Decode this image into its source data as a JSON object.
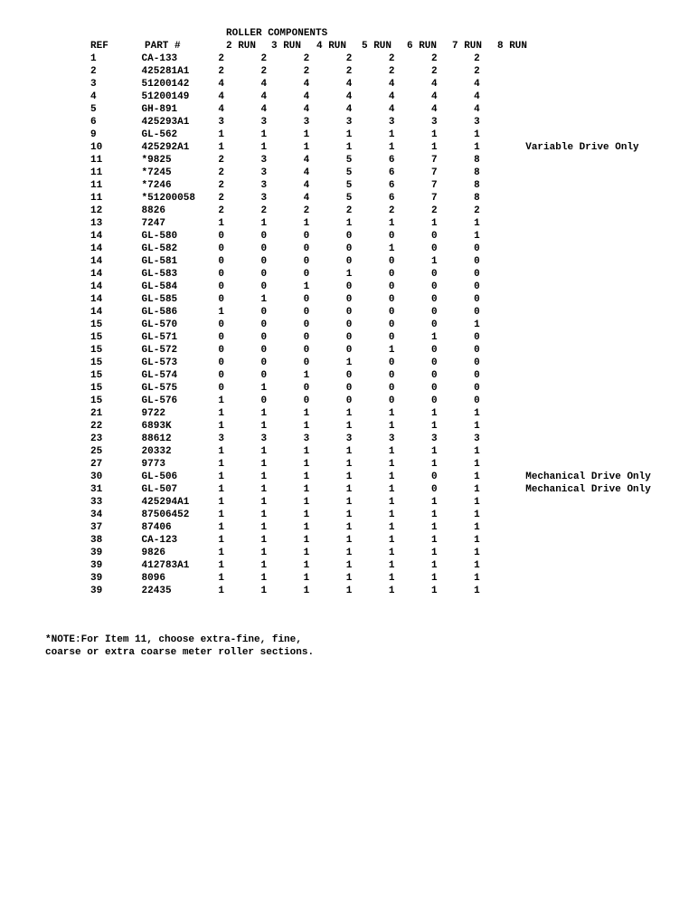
{
  "title": "ROLLER COMPONENTS",
  "columns": [
    "REF",
    "PART #",
    "2 RUN",
    "3 RUN",
    "4 RUN",
    "5 RUN",
    "6 RUN",
    "7 RUN",
    "8 RUN"
  ],
  "rows": [
    {
      "ref": "1",
      "part": "CA-133",
      "runs": [
        "2",
        "2",
        "2",
        "2",
        "2",
        "2",
        "2"
      ],
      "note": ""
    },
    {
      "ref": "2",
      "part": "425281A1",
      "runs": [
        "2",
        "2",
        "2",
        "2",
        "2",
        "2",
        "2"
      ],
      "note": ""
    },
    {
      "ref": "3",
      "part": "51200142",
      "runs": [
        "4",
        "4",
        "4",
        "4",
        "4",
        "4",
        "4"
      ],
      "note": ""
    },
    {
      "ref": "4",
      "part": "51200149",
      "runs": [
        "4",
        "4",
        "4",
        "4",
        "4",
        "4",
        "4"
      ],
      "note": ""
    },
    {
      "ref": "5",
      "part": "GH-891",
      "runs": [
        "4",
        "4",
        "4",
        "4",
        "4",
        "4",
        "4"
      ],
      "note": ""
    },
    {
      "ref": "6",
      "part": "425293A1",
      "runs": [
        "3",
        "3",
        "3",
        "3",
        "3",
        "3",
        "3"
      ],
      "note": ""
    },
    {
      "ref": "9",
      "part": "GL-562",
      "runs": [
        "1",
        "1",
        "1",
        "1",
        "1",
        "1",
        "1"
      ],
      "note": ""
    },
    {
      "ref": "10",
      "part": "425292A1",
      "runs": [
        "1",
        "1",
        "1",
        "1",
        "1",
        "1",
        "1"
      ],
      "note": "Variable Drive Only"
    },
    {
      "ref": "11",
      "part": "*9825",
      "runs": [
        "2",
        "3",
        "4",
        "5",
        "6",
        "7",
        "8"
      ],
      "note": ""
    },
    {
      "ref": "11",
      "part": "*7245",
      "runs": [
        "2",
        "3",
        "4",
        "5",
        "6",
        "7",
        "8"
      ],
      "note": ""
    },
    {
      "ref": "11",
      "part": "*7246",
      "runs": [
        "2",
        "3",
        "4",
        "5",
        "6",
        "7",
        "8"
      ],
      "note": ""
    },
    {
      "ref": "11",
      "part": "*51200058",
      "runs": [
        "2",
        "3",
        "4",
        "5",
        "6",
        "7",
        "8"
      ],
      "note": ""
    },
    {
      "ref": "12",
      "part": "8826",
      "runs": [
        "2",
        "2",
        "2",
        "2",
        "2",
        "2",
        "2"
      ],
      "note": ""
    },
    {
      "ref": "13",
      "part": "7247",
      "runs": [
        "1",
        "1",
        "1",
        "1",
        "1",
        "1",
        "1"
      ],
      "note": ""
    },
    {
      "ref": "14",
      "part": "GL-580",
      "runs": [
        "0",
        "0",
        "0",
        "0",
        "0",
        "0",
        "1"
      ],
      "note": ""
    },
    {
      "ref": "14",
      "part": "GL-582",
      "runs": [
        "0",
        "0",
        "0",
        "0",
        "1",
        "0",
        "0"
      ],
      "note": ""
    },
    {
      "ref": "14",
      "part": "GL-581",
      "runs": [
        "0",
        "0",
        "0",
        "0",
        "0",
        "1",
        "0"
      ],
      "note": ""
    },
    {
      "ref": "14",
      "part": "GL-583",
      "runs": [
        "0",
        "0",
        "0",
        "1",
        "0",
        "0",
        "0"
      ],
      "note": ""
    },
    {
      "ref": "14",
      "part": "GL-584",
      "runs": [
        "0",
        "0",
        "1",
        "0",
        "0",
        "0",
        "0"
      ],
      "note": ""
    },
    {
      "ref": "14",
      "part": "GL-585",
      "runs": [
        "0",
        "1",
        "0",
        "0",
        "0",
        "0",
        "0"
      ],
      "note": ""
    },
    {
      "ref": "14",
      "part": "GL-586",
      "runs": [
        "1",
        "0",
        "0",
        "0",
        "0",
        "0",
        "0"
      ],
      "note": ""
    },
    {
      "ref": "15",
      "part": "GL-570",
      "runs": [
        "0",
        "0",
        "0",
        "0",
        "0",
        "0",
        "1"
      ],
      "note": ""
    },
    {
      "ref": "15",
      "part": "GL-571",
      "runs": [
        "0",
        "0",
        "0",
        "0",
        "0",
        "1",
        "0"
      ],
      "note": ""
    },
    {
      "ref": "15",
      "part": "GL-572",
      "runs": [
        "0",
        "0",
        "0",
        "0",
        "1",
        "0",
        "0"
      ],
      "note": ""
    },
    {
      "ref": "15",
      "part": "GL-573",
      "runs": [
        "0",
        "0",
        "0",
        "1",
        "0",
        "0",
        "0"
      ],
      "note": ""
    },
    {
      "ref": "15",
      "part": "GL-574",
      "runs": [
        "0",
        "0",
        "1",
        "0",
        "0",
        "0",
        "0"
      ],
      "note": ""
    },
    {
      "ref": "15",
      "part": "GL-575",
      "runs": [
        "0",
        "1",
        "0",
        "0",
        "0",
        "0",
        "0"
      ],
      "note": ""
    },
    {
      "ref": "15",
      "part": "GL-576",
      "runs": [
        "1",
        "0",
        "0",
        "0",
        "0",
        "0",
        "0"
      ],
      "note": ""
    },
    {
      "ref": "21",
      "part": "9722",
      "runs": [
        "1",
        "1",
        "1",
        "1",
        "1",
        "1",
        "1"
      ],
      "note": ""
    },
    {
      "ref": "22",
      "part": "6893K",
      "runs": [
        "1",
        "1",
        "1",
        "1",
        "1",
        "1",
        "1"
      ],
      "note": ""
    },
    {
      "ref": "23",
      "part": "88612",
      "runs": [
        "3",
        "3",
        "3",
        "3",
        "3",
        "3",
        "3"
      ],
      "note": ""
    },
    {
      "ref": "25",
      "part": "20332",
      "runs": [
        "1",
        "1",
        "1",
        "1",
        "1",
        "1",
        "1"
      ],
      "note": ""
    },
    {
      "ref": "27",
      "part": "9773",
      "runs": [
        "1",
        "1",
        "1",
        "1",
        "1",
        "1",
        "1"
      ],
      "note": ""
    },
    {
      "ref": "30",
      "part": "GL-506",
      "runs": [
        "1",
        "1",
        "1",
        "1",
        "1",
        "0",
        "1"
      ],
      "note": "Mechanical Drive Only"
    },
    {
      "ref": "31",
      "part": "GL-507",
      "runs": [
        "1",
        "1",
        "1",
        "1",
        "1",
        "0",
        "1"
      ],
      "note": "Mechanical Drive Only"
    },
    {
      "ref": "33",
      "part": "425294A1",
      "runs": [
        "1",
        "1",
        "1",
        "1",
        "1",
        "1",
        "1"
      ],
      "note": ""
    },
    {
      "ref": "34",
      "part": "87506452",
      "runs": [
        "1",
        "1",
        "1",
        "1",
        "1",
        "1",
        "1"
      ],
      "note": ""
    },
    {
      "ref": "37",
      "part": "87406",
      "runs": [
        "1",
        "1",
        "1",
        "1",
        "1",
        "1",
        "1"
      ],
      "note": ""
    },
    {
      "ref": "38",
      "part": "CA-123",
      "runs": [
        "1",
        "1",
        "1",
        "1",
        "1",
        "1",
        "1"
      ],
      "note": ""
    },
    {
      "ref": "39",
      "part": "9826",
      "runs": [
        "1",
        "1",
        "1",
        "1",
        "1",
        "1",
        "1"
      ],
      "note": ""
    },
    {
      "ref": "39",
      "part": "412783A1",
      "runs": [
        "1",
        "1",
        "1",
        "1",
        "1",
        "1",
        "1"
      ],
      "note": ""
    },
    {
      "ref": "39",
      "part": "8096",
      "runs": [
        "1",
        "1",
        "1",
        "1",
        "1",
        "1",
        "1"
      ],
      "note": ""
    },
    {
      "ref": "39",
      "part": "22435",
      "runs": [
        "1",
        "1",
        "1",
        "1",
        "1",
        "1",
        "1"
      ],
      "note": ""
    }
  ],
  "footnote_line1": "*NOTE:For Item 11, choose extra-fine, fine,",
  "footnote_line2": "coarse or extra coarse meter roller sections."
}
